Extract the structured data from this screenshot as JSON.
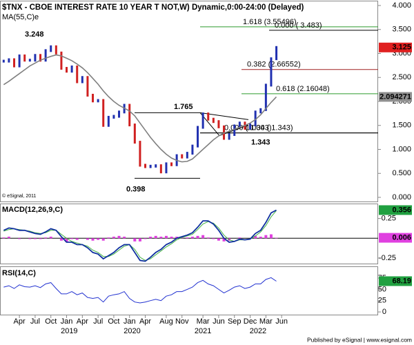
{
  "chart_data": {
    "type": "candlestick",
    "title": "$TNX - CBOE INTEREST RATE 10 YEAR T NOT,W) Dynamic,0:00-24:00 (Delayed)",
    "ma_label": "MA(55,C)e",
    "credit": "© eSignal, 2011",
    "footer": "Published by eSignal | www.esignal.com",
    "x": [
      0,
      1,
      2,
      3,
      4,
      5,
      6,
      7,
      8,
      9,
      10,
      11,
      12,
      13,
      14,
      15,
      16,
      17,
      18,
      19,
      20,
      21,
      22,
      23,
      24,
      25,
      26,
      27,
      28,
      29,
      30,
      31,
      32,
      33,
      34,
      35,
      36,
      37,
      38,
      39,
      40,
      41,
      42,
      43,
      44,
      45,
      46,
      47,
      48,
      49,
      50,
      51,
      52
    ],
    "xlim": [
      -0.7,
      71.4
    ],
    "xticks": [
      {
        "value": 3,
        "label": "Apr"
      },
      {
        "value": 6,
        "label": "Jul"
      },
      {
        "value": 9,
        "label": "Oct"
      },
      {
        "value": 12,
        "label": "Jan"
      },
      {
        "value": 15,
        "label": "Apr"
      },
      {
        "value": 18,
        "label": "Jul"
      },
      {
        "value": 21,
        "label": "Oct"
      },
      {
        "value": 24,
        "label": "Jan"
      },
      {
        "value": 27,
        "label": "Apr"
      },
      {
        "value": 31,
        "label": "Aug"
      },
      {
        "value": 34,
        "label": "Nov"
      },
      {
        "value": 38,
        "label": "Mar"
      },
      {
        "value": 41,
        "label": "Jun"
      },
      {
        "value": 44,
        "label": "Sep"
      },
      {
        "value": 47,
        "label": "Dec"
      },
      {
        "value": 50,
        "label": "Mar"
      },
      {
        "value": 53,
        "label": "Jun"
      }
    ],
    "years": [
      {
        "value": 12.5,
        "label": "2019"
      },
      {
        "value": 24.5,
        "label": "2020"
      },
      {
        "value": 38,
        "label": "2021"
      },
      {
        "value": 48.5,
        "label": "2022"
      }
    ],
    "ylim": [
      -0.086,
      4.086
    ],
    "yticks": [
      {
        "value": 4,
        "label": "4.000"
      },
      {
        "value": 3.5,
        "label": "3.500"
      },
      {
        "value": 3,
        "label": "3.000"
      },
      {
        "value": 2.5,
        "label": "2.500"
      },
      {
        "value": 2,
        "label": "2.000"
      },
      {
        "value": 1.5,
        "label": "1.500"
      },
      {
        "value": 1,
        "label": "1.000"
      },
      {
        "value": 0.5,
        "label": "0.500"
      },
      {
        "value": 0,
        "label": "0.000"
      }
    ],
    "series": [
      {
        "name": "$TNX",
        "color": "#2030b0",
        "down_color": "#d02020",
        "values": [
          2.84,
          2.87,
          2.74,
          2.95,
          2.86,
          2.86,
          2.96,
          2.86,
          3.06,
          3.14,
          3.01,
          2.69,
          2.63,
          2.72,
          2.41,
          2.5,
          2.13,
          2.01,
          2.02,
          1.5,
          1.67,
          1.69,
          1.78,
          1.92,
          1.51,
          1.15,
          0.67,
          0.64,
          0.65,
          0.66,
          0.53,
          0.7,
          0.68,
          0.87,
          0.84,
          0.92,
          1.07,
          1.46,
          1.74,
          1.63,
          1.58,
          1.47,
          1.23,
          1.31,
          1.49,
          1.55,
          1.44,
          1.51,
          1.78,
          1.83,
          2.34,
          2.89,
          3.125
        ]
      },
      {
        "name": "MA(55,C)e",
        "color": "#808080",
        "values": [
          2.35,
          2.42,
          2.5,
          2.58,
          2.66,
          2.74,
          2.8,
          2.86,
          2.9,
          2.94,
          2.97,
          2.95,
          2.9,
          2.85,
          2.78,
          2.7,
          2.6,
          2.48,
          2.36,
          2.22,
          2.1,
          2.0,
          1.92,
          1.86,
          1.8,
          1.7,
          1.55,
          1.4,
          1.25,
          1.12,
          1.0,
          0.9,
          0.82,
          0.77,
          0.74,
          0.75,
          0.8,
          0.9,
          1.0,
          1.1,
          1.2,
          1.28,
          1.34,
          1.38,
          1.42,
          1.46,
          1.5,
          1.55,
          1.62,
          1.72,
          1.85,
          1.98,
          2.094271
        ]
      }
    ],
    "price_tags": [
      {
        "value": 3.125,
        "color": "#e02020"
      },
      {
        "value": 2.094271,
        "color": "#909090"
      }
    ],
    "levels": [
      {
        "label": "1.618 (3.55496)",
        "value": 3.55496,
        "color": "#2a9a2a"
      },
      {
        "label": "0.000 ( 3.483)",
        "value": 3.483,
        "color": "#000000"
      },
      {
        "label": "0.382 (2.66552)",
        "value": 2.66552,
        "color": "#a02020"
      },
      {
        "label": "0.618 (2.16048)",
        "value": 2.16048,
        "color": "#2a9a2a"
      },
      {
        "label": "0.000 ( 1.343)",
        "value": 1.343,
        "color": "#000000"
      },
      {
        "label": "1.000 ( 1.343)",
        "value": 1.343,
        "color": "#000000"
      }
    ],
    "points": [
      3.248,
      1.765,
      0.398,
      1.343
    ],
    "macd": {
      "title": "MACD(12,26,9,C)",
      "ylim": [
        -0.32,
        0.43
      ],
      "yticks": [
        0.25,
        -0.25
      ],
      "series": [
        {
          "name": "MACD",
          "color": "#1030a0",
          "values": [
            0.1,
            0.13,
            0.12,
            0.1,
            0.1,
            0.08,
            0.06,
            0.05,
            0.08,
            0.12,
            0.1,
            0.02,
            -0.05,
            -0.05,
            -0.08,
            -0.08,
            -0.12,
            -0.18,
            -0.2,
            -0.26,
            -0.22,
            -0.18,
            -0.12,
            -0.08,
            -0.08,
            -0.18,
            -0.28,
            -0.29,
            -0.24,
            -0.18,
            -0.14,
            -0.08,
            -0.05,
            0.0,
            0.02,
            0.04,
            0.07,
            0.14,
            0.22,
            0.22,
            0.18,
            0.1,
            0.0,
            -0.05,
            -0.04,
            -0.01,
            -0.02,
            -0.01,
            0.06,
            0.1,
            0.2,
            0.32,
            0.356
          ]
        },
        {
          "name": "Signal",
          "color": "#40b040",
          "values": [
            0.09,
            0.11,
            0.12,
            0.11,
            0.1,
            0.09,
            0.07,
            0.06,
            0.07,
            0.1,
            0.1,
            0.05,
            0.0,
            -0.04,
            -0.06,
            -0.08,
            -0.1,
            -0.15,
            -0.18,
            -0.23,
            -0.23,
            -0.2,
            -0.15,
            -0.1,
            -0.08,
            -0.14,
            -0.24,
            -0.28,
            -0.26,
            -0.21,
            -0.16,
            -0.11,
            -0.07,
            -0.02,
            0.01,
            0.03,
            0.05,
            0.11,
            0.18,
            0.21,
            0.19,
            0.13,
            0.04,
            -0.02,
            -0.04,
            -0.02,
            -0.02,
            -0.01,
            0.03,
            0.08,
            0.16,
            0.27,
            0.35
          ]
        },
        {
          "name": "Histogram",
          "color": "#e040e0",
          "values": [
            0.01,
            0.02,
            0,
            -0.01,
            0,
            -0.01,
            -0.01,
            -0.01,
            0.01,
            0.02,
            0,
            -0.03,
            -0.05,
            -0.01,
            -0.02,
            0,
            -0.02,
            -0.03,
            -0.02,
            -0.03,
            0.01,
            0.02,
            0.03,
            0.02,
            0,
            -0.04,
            -0.04,
            -0.01,
            0.02,
            0.03,
            0.02,
            0.03,
            0.02,
            0.02,
            0.01,
            0.01,
            0.02,
            0.03,
            0.04,
            0.01,
            -0.01,
            -0.03,
            -0.04,
            -0.03,
            0,
            0.01,
            0,
            0,
            0.03,
            0.02,
            0.04,
            0.05,
            0.006
          ]
        }
      ],
      "tags": [
        {
          "value": 0.356,
          "color": "#20a040"
        },
        {
          "value": 0.006,
          "color": "#e040e0"
        }
      ]
    },
    "rsi": {
      "title": "RSI(14,C)",
      "ylim": [
        -6,
        99.5
      ],
      "yticks": [
        75,
        50,
        25,
        0
      ],
      "series": [
        {
          "name": "RSI",
          "color": "#2030d0",
          "values": [
            55,
            58,
            52,
            60,
            56,
            55,
            58,
            54,
            62,
            65,
            52,
            40,
            40,
            45,
            38,
            42,
            32,
            30,
            32,
            22,
            35,
            38,
            40,
            45,
            30,
            22,
            20,
            22,
            25,
            28,
            25,
            35,
            38,
            45,
            45,
            50,
            55,
            65,
            70,
            62,
            58,
            50,
            42,
            48,
            55,
            58,
            52,
            55,
            62,
            62,
            72,
            76,
            68.19
          ]
        }
      ],
      "tags": [
        {
          "value": 68.19,
          "color": "#20a040"
        }
      ]
    }
  }
}
